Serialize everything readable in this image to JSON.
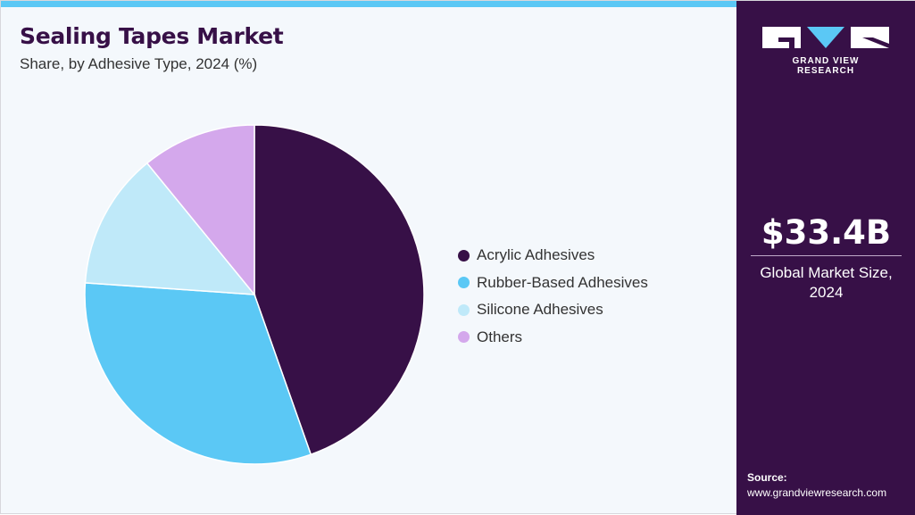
{
  "header": {
    "title": "Sealing Tapes Market",
    "subtitle": "Share, by Adhesive Type, 2024 (%)"
  },
  "colors": {
    "accent_bar": "#5bc8f5",
    "sidebar_bg": "#371047"
  },
  "chart_data": {
    "type": "pie",
    "title": "Sealing Tapes Market",
    "subtitle": "Share, by Adhesive Type, 2024 (%)",
    "categories": [
      "Acrylic Adhesives",
      "Rubber-Based Adhesives",
      "Silicone Adhesives",
      "Others"
    ],
    "values": [
      44.6,
      31.5,
      13.0,
      10.9
    ],
    "colors": [
      "#371047",
      "#5bc8f5",
      "#bfe9f9",
      "#d4a8ec"
    ],
    "start": "12 o'clock",
    "direction": "clockwise",
    "legend_position": "right"
  },
  "sidebar": {
    "logo_text": "GRAND VIEW RESEARCH",
    "market_size": "$33.4B",
    "market_label": "Global Market Size, 2024",
    "source_title": "Source:",
    "source_url": "www.grandviewresearch.com"
  }
}
